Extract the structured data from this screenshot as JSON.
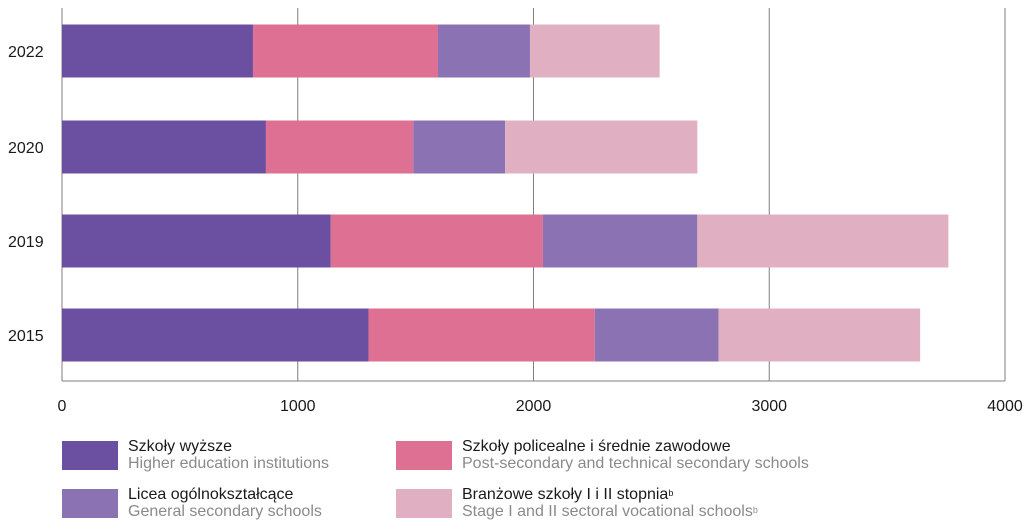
{
  "chart_data": {
    "type": "bar",
    "orientation": "horizontal",
    "stacked": true,
    "categories": [
      "2022",
      "2020",
      "2019",
      "2015"
    ],
    "series": [
      {
        "name": "Szkoły wyższe",
        "name_en": "Higher education institutions",
        "color": "#6b4fa0",
        "values": [
          810,
          865,
          1140,
          1300
        ]
      },
      {
        "name": "Szkoły policealne i średnie zawodowe",
        "name_en": "Post-secondary and technical secondary schools",
        "color": "#de7193",
        "values": [
          785,
          625,
          900,
          960
        ]
      },
      {
        "name": "Licea ogólnokształcące",
        "name_en": "General secondary schools",
        "color": "#8b72b3",
        "values": [
          390,
          390,
          655,
          525
        ]
      },
      {
        "name": "Branżowe szkoły I i II stopnia",
        "name_en": "Stage I and II sectoral vocational schools",
        "sup": "b",
        "color": "#e0b0c2",
        "values": [
          550,
          815,
          1065,
          855
        ]
      }
    ],
    "xlim": [
      0,
      4000
    ],
    "xticks": [
      "0",
      "1000",
      "2000",
      "3000",
      "4000"
    ],
    "grid": "vertical",
    "legend_position": "bottom"
  }
}
